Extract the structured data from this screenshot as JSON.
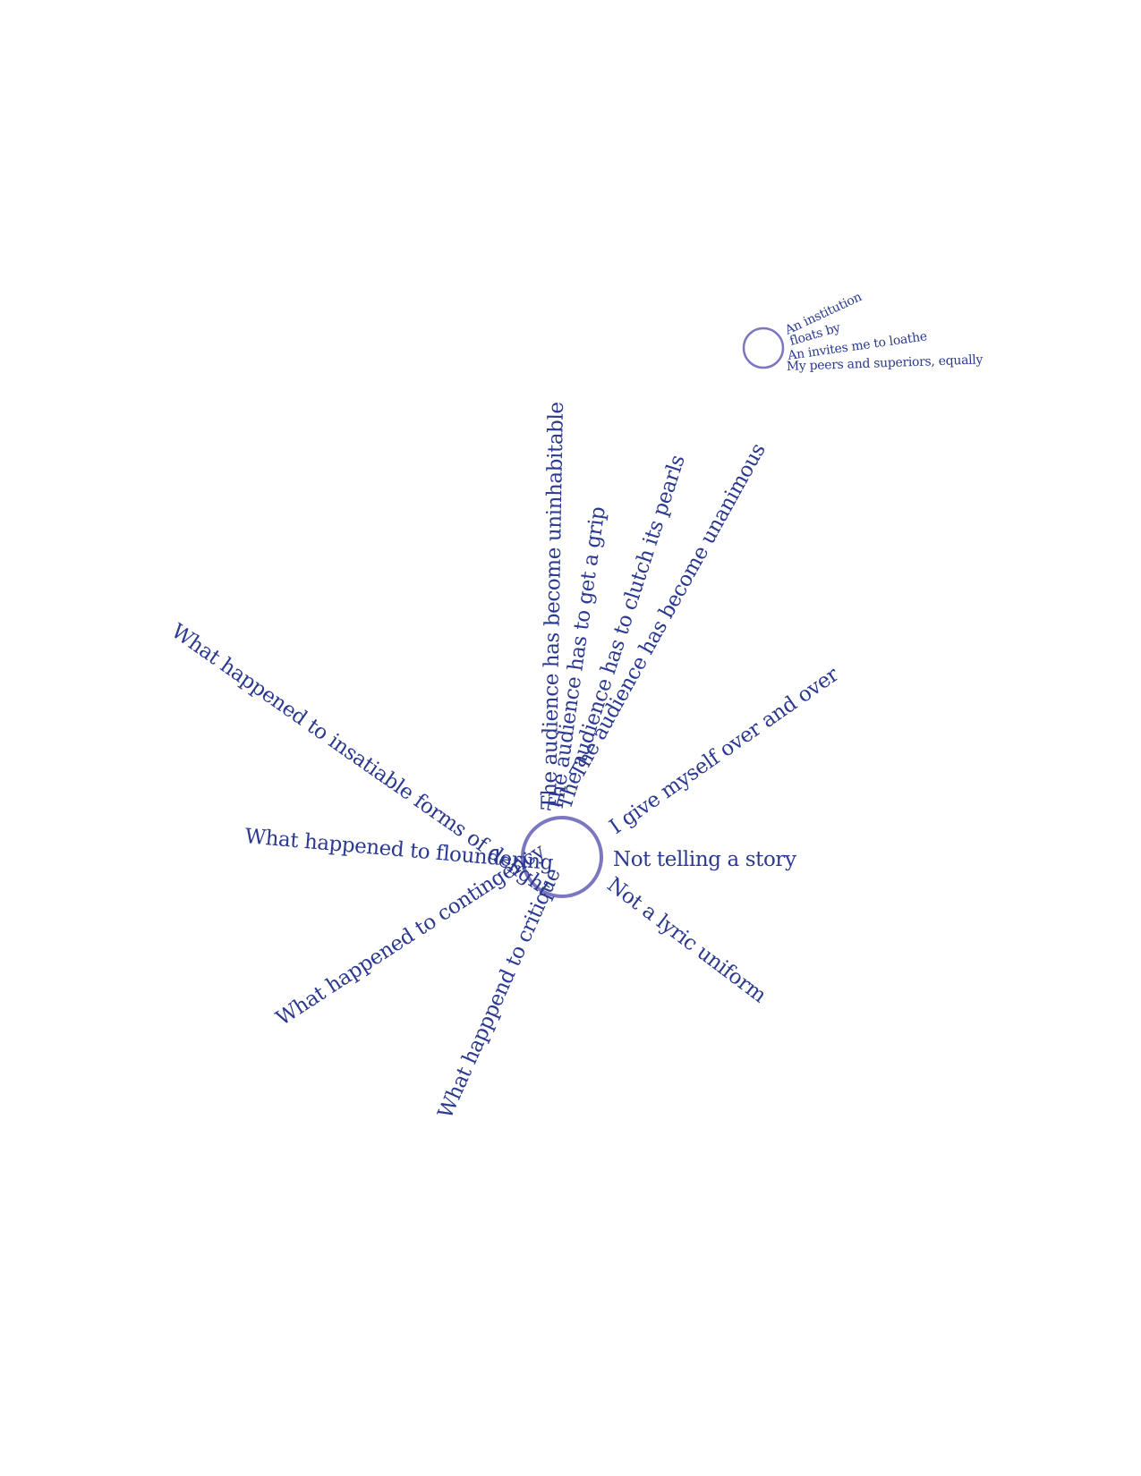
{
  "colors": {
    "text": "#2B3990",
    "circle": "#7B77C0",
    "background": "#ffffff"
  },
  "radial_poem": {
    "lines": [
      "The audience has become uninhabitable",
      "The audience has to get a grip",
      "The audience has to clutch its pearls",
      "The audience has become unanimous",
      "I give myself over and over",
      "Not telling a story",
      "Not a lyric uniform",
      "What happpend to critique",
      "What happened to contingency",
      "What happened to floundering",
      "What happened to insatiable forms of delight"
    ]
  },
  "small_cluster": {
    "lines": [
      "An institution",
      "floats by",
      "An invites me to loathe",
      "My peers and superiors, equally"
    ]
  }
}
